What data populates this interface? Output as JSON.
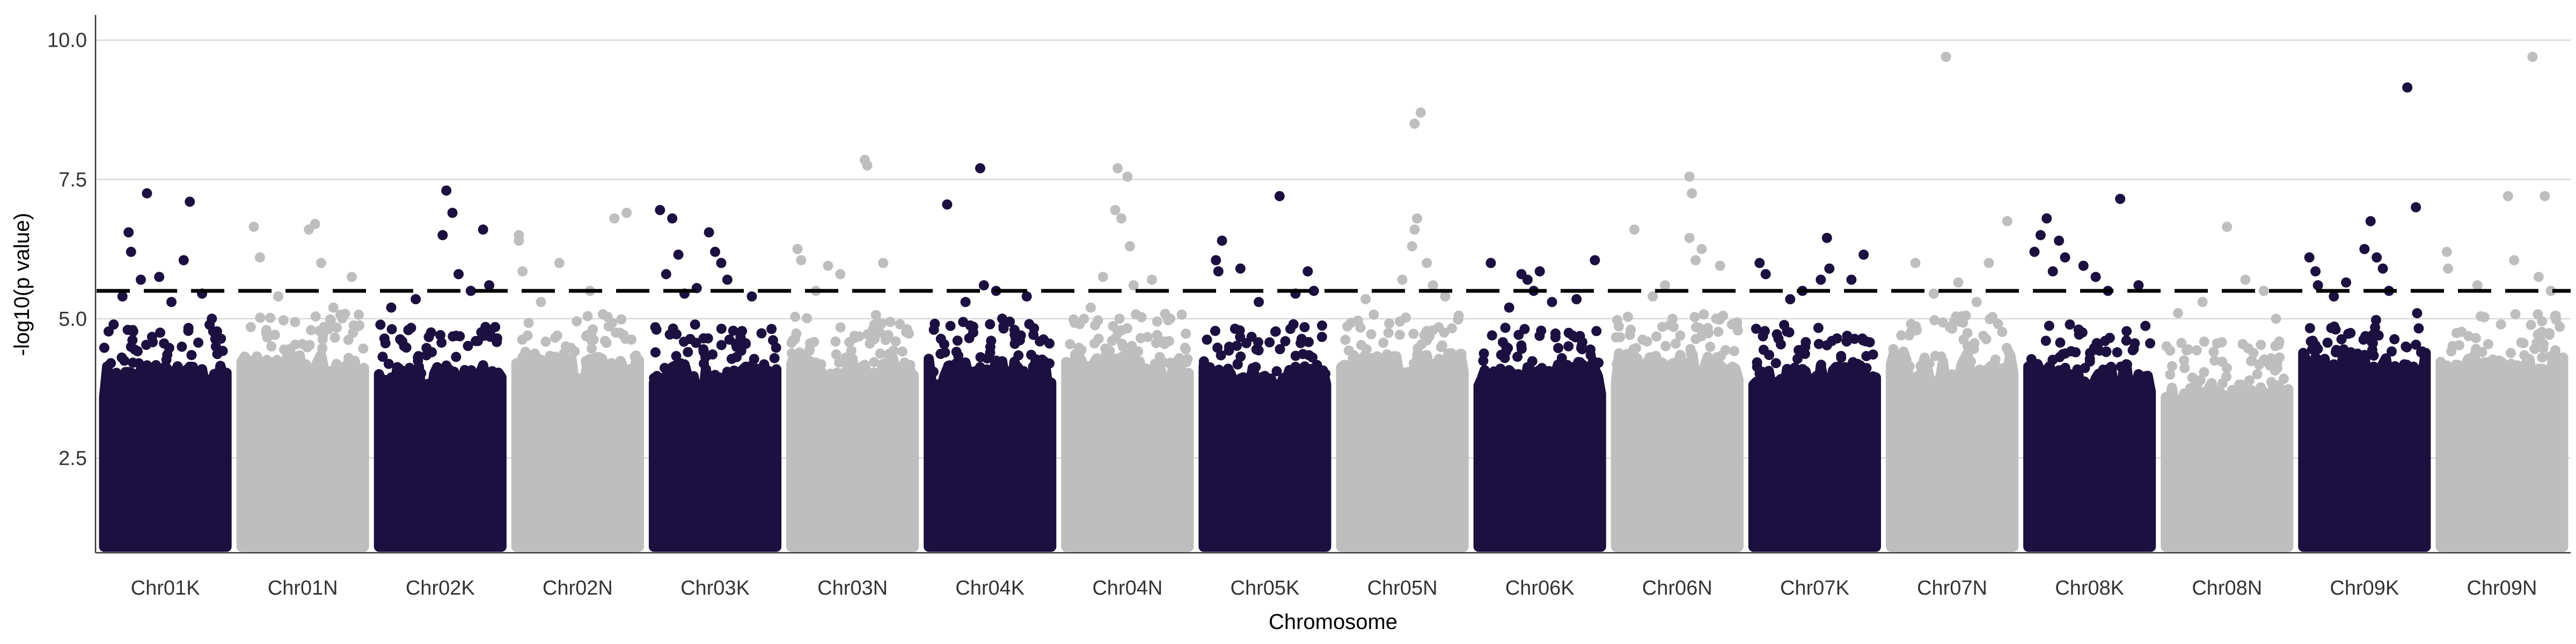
{
  "chart_data": {
    "type": "scatter",
    "subtype": "manhattan",
    "title": "",
    "xlabel": "Chromosome",
    "ylabel": "-log10(p value)",
    "ylim": [
      0.8,
      10.45
    ],
    "yticks": [
      2.5,
      5.0,
      7.5,
      10.0
    ],
    "yticklabels": [
      "2.5",
      "5.0",
      "7.5",
      "10.0"
    ],
    "grid": "horizontal major",
    "legend": "none",
    "significance_threshold": 5.5,
    "threshold_line_style": "dashed",
    "colors": {
      "dark": "#1b1040",
      "light": "#bebebe",
      "threshold": "#000000",
      "grid": "#d9d9d9",
      "axis": "#333333"
    },
    "chromosomes": [
      {
        "name": "Chr01K",
        "color": "dark",
        "base_top": 3.8,
        "points": [
          [
            0.35,
            7.25
          ],
          [
            0.2,
            6.55
          ],
          [
            0.22,
            6.2
          ],
          [
            0.3,
            5.7
          ],
          [
            0.45,
            5.75
          ],
          [
            0.7,
            7.1
          ],
          [
            0.65,
            6.05
          ],
          [
            0.8,
            5.45
          ],
          [
            0.88,
            5.0
          ],
          [
            0.15,
            5.4
          ],
          [
            0.55,
            5.3
          ]
        ]
      },
      {
        "name": "Chr01N",
        "color": "light",
        "base_top": 4.0,
        "points": [
          [
            0.1,
            6.65
          ],
          [
            0.15,
            6.1
          ],
          [
            0.6,
            6.7
          ],
          [
            0.55,
            6.6
          ],
          [
            0.65,
            6.0
          ],
          [
            0.9,
            5.75
          ],
          [
            0.3,
            5.4
          ],
          [
            0.75,
            5.2
          ]
        ]
      },
      {
        "name": "Chr02K",
        "color": "dark",
        "base_top": 3.8,
        "points": [
          [
            0.55,
            7.3
          ],
          [
            0.6,
            6.9
          ],
          [
            0.52,
            6.5
          ],
          [
            0.85,
            6.6
          ],
          [
            0.9,
            5.6
          ],
          [
            0.65,
            5.8
          ],
          [
            0.75,
            5.5
          ],
          [
            0.3,
            5.35
          ],
          [
            0.1,
            5.2
          ]
        ]
      },
      {
        "name": "Chr02N",
        "color": "light",
        "base_top": 4.0,
        "points": [
          [
            0.02,
            6.5
          ],
          [
            0.02,
            6.4
          ],
          [
            0.05,
            5.85
          ],
          [
            0.8,
            6.8
          ],
          [
            0.9,
            6.9
          ],
          [
            0.35,
            6.0
          ],
          [
            0.6,
            5.5
          ],
          [
            0.2,
            5.3
          ]
        ]
      },
      {
        "name": "Chr03K",
        "color": "dark",
        "base_top": 3.8,
        "points": [
          [
            0.05,
            6.95
          ],
          [
            0.15,
            6.8
          ],
          [
            0.2,
            6.15
          ],
          [
            0.1,
            5.8
          ],
          [
            0.45,
            6.55
          ],
          [
            0.5,
            6.2
          ],
          [
            0.55,
            6.0
          ],
          [
            0.6,
            5.7
          ],
          [
            0.8,
            5.4
          ],
          [
            0.35,
            5.55
          ],
          [
            0.25,
            5.45
          ]
        ]
      },
      {
        "name": "Chr03N",
        "color": "light",
        "base_top": 4.0,
        "points": [
          [
            0.05,
            6.25
          ],
          [
            0.08,
            6.05
          ],
          [
            0.6,
            7.85
          ],
          [
            0.62,
            7.75
          ],
          [
            0.3,
            5.95
          ],
          [
            0.4,
            5.8
          ],
          [
            0.75,
            6.0
          ],
          [
            0.2,
            5.5
          ]
        ]
      },
      {
        "name": "Chr04K",
        "color": "dark",
        "base_top": 3.9,
        "points": [
          [
            0.15,
            7.05
          ],
          [
            0.42,
            7.7
          ],
          [
            0.45,
            5.6
          ],
          [
            0.55,
            5.5
          ],
          [
            0.3,
            5.3
          ],
          [
            0.6,
            5.0
          ],
          [
            0.8,
            5.4
          ],
          [
            0.7,
            4.8
          ],
          [
            0.5,
            4.9
          ]
        ]
      },
      {
        "name": "Chr04N",
        "color": "light",
        "base_top": 4.0,
        "points": [
          [
            0.42,
            7.7
          ],
          [
            0.5,
            7.55
          ],
          [
            0.4,
            6.95
          ],
          [
            0.45,
            6.8
          ],
          [
            0.3,
            5.75
          ],
          [
            0.52,
            6.3
          ],
          [
            0.55,
            5.6
          ],
          [
            0.7,
            5.7
          ],
          [
            0.2,
            5.2
          ],
          [
            0.85,
            5.0
          ]
        ]
      },
      {
        "name": "Chr05K",
        "color": "dark",
        "base_top": 3.8,
        "points": [
          [
            0.15,
            6.4
          ],
          [
            0.1,
            6.05
          ],
          [
            0.12,
            5.85
          ],
          [
            0.3,
            5.9
          ],
          [
            0.62,
            7.2
          ],
          [
            0.85,
            5.85
          ],
          [
            0.75,
            5.45
          ],
          [
            0.45,
            5.3
          ],
          [
            0.9,
            5.5
          ]
        ]
      },
      {
        "name": "Chr05N",
        "color": "light",
        "base_top": 4.0,
        "points": [
          [
            0.6,
            8.5
          ],
          [
            0.65,
            8.7
          ],
          [
            0.62,
            6.8
          ],
          [
            0.6,
            6.6
          ],
          [
            0.58,
            6.3
          ],
          [
            0.7,
            6.0
          ],
          [
            0.5,
            5.7
          ],
          [
            0.2,
            5.35
          ],
          [
            0.85,
            5.4
          ],
          [
            0.75,
            5.6
          ]
        ]
      },
      {
        "name": "Chr06K",
        "color": "dark",
        "base_top": 3.8,
        "points": [
          [
            0.1,
            6.0
          ],
          [
            0.35,
            5.8
          ],
          [
            0.4,
            5.7
          ],
          [
            0.5,
            5.85
          ],
          [
            0.45,
            5.5
          ],
          [
            0.95,
            6.05
          ],
          [
            0.6,
            5.3
          ],
          [
            0.25,
            5.2
          ],
          [
            0.8,
            5.35
          ]
        ]
      },
      {
        "name": "Chr06N",
        "color": "light",
        "base_top": 4.0,
        "points": [
          [
            0.15,
            6.6
          ],
          [
            0.6,
            7.55
          ],
          [
            0.62,
            7.25
          ],
          [
            0.6,
            6.45
          ],
          [
            0.7,
            6.25
          ],
          [
            0.65,
            6.05
          ],
          [
            0.85,
            5.95
          ],
          [
            0.4,
            5.6
          ],
          [
            0.3,
            5.4
          ]
        ]
      },
      {
        "name": "Chr07K",
        "color": "dark",
        "base_top": 3.8,
        "points": [
          [
            0.05,
            6.0
          ],
          [
            0.1,
            5.8
          ],
          [
            0.6,
            6.45
          ],
          [
            0.62,
            5.9
          ],
          [
            0.55,
            5.7
          ],
          [
            0.8,
            5.7
          ],
          [
            0.9,
            6.15
          ],
          [
            0.4,
            5.5
          ],
          [
            0.3,
            5.35
          ]
        ]
      },
      {
        "name": "Chr07N",
        "color": "light",
        "base_top": 4.0,
        "points": [
          [
            0.45,
            9.7
          ],
          [
            0.2,
            6.0
          ],
          [
            0.8,
            6.0
          ],
          [
            0.95,
            6.75
          ],
          [
            0.55,
            5.65
          ],
          [
            0.35,
            5.45
          ],
          [
            0.7,
            5.3
          ]
        ]
      },
      {
        "name": "Chr08K",
        "color": "dark",
        "base_top": 3.8,
        "points": [
          [
            0.15,
            6.8
          ],
          [
            0.1,
            6.5
          ],
          [
            0.25,
            6.4
          ],
          [
            0.3,
            6.1
          ],
          [
            0.2,
            5.85
          ],
          [
            0.45,
            5.95
          ],
          [
            0.55,
            5.75
          ],
          [
            0.75,
            7.15
          ],
          [
            0.65,
            5.5
          ],
          [
            0.9,
            5.6
          ],
          [
            0.05,
            6.2
          ]
        ]
      },
      {
        "name": "Chr08N",
        "color": "light",
        "base_top": 3.5,
        "points": [
          [
            0.5,
            6.65
          ],
          [
            0.65,
            5.7
          ],
          [
            0.3,
            5.3
          ],
          [
            0.8,
            5.5
          ],
          [
            0.1,
            5.1
          ],
          [
            0.9,
            5.0
          ]
        ]
      },
      {
        "name": "Chr09K",
        "color": "dark",
        "base_top": 4.0,
        "points": [
          [
            0.05,
            6.1
          ],
          [
            0.1,
            5.85
          ],
          [
            0.12,
            5.6
          ],
          [
            0.55,
            6.75
          ],
          [
            0.5,
            6.25
          ],
          [
            0.85,
            9.15
          ],
          [
            0.92,
            7.0
          ],
          [
            0.6,
            6.1
          ],
          [
            0.65,
            5.9
          ],
          [
            0.7,
            5.5
          ],
          [
            0.35,
            5.65
          ],
          [
            0.25,
            5.4
          ]
        ]
      },
      {
        "name": "Chr09N",
        "color": "light",
        "base_top": 4.0,
        "points": [
          [
            0.05,
            6.2
          ],
          [
            0.06,
            5.9
          ],
          [
            0.75,
            9.7
          ],
          [
            0.55,
            7.2
          ],
          [
            0.85,
            7.2
          ],
          [
            0.6,
            6.05
          ],
          [
            0.3,
            5.6
          ],
          [
            0.8,
            5.75
          ],
          [
            0.9,
            5.5
          ]
        ]
      }
    ]
  }
}
